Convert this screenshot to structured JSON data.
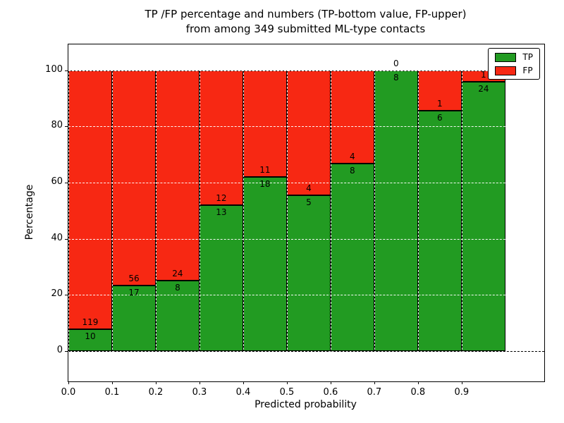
{
  "figure": {
    "title_line1": "TP /FP percentage and numbers (TP-bottom value, FP-upper)",
    "title_line2": "from among 349 submitted ML-type contacts",
    "xlabel": "Predicted probability",
    "ylabel": "Percentage"
  },
  "colors": {
    "tp": "#229b22",
    "fp": "#f72813",
    "axis": "#000000",
    "grid_over_bars": "#ffffff",
    "background": "#ffffff"
  },
  "legend": {
    "position": "upper right",
    "items": [
      {
        "label": "TP",
        "color": "#229b22"
      },
      {
        "label": "FP",
        "color": "#f72813"
      }
    ]
  },
  "chart_data": {
    "type": "bar",
    "stacked": true,
    "normalized_to": 100,
    "title": "TP /FP percentage and numbers (TP-bottom value, FP-upper) from among 349 submitted ML-type contacts",
    "xlabel": "Predicted probability",
    "ylabel": "Percentage",
    "total_contacts": 349,
    "grid": true,
    "bin_width": 0.1,
    "xlim": [
      0,
      1.089
    ],
    "ylim": [
      -10.8,
      109.2
    ],
    "x_tick_labels": [
      "0.0",
      "0.1",
      "0.2",
      "0.3",
      "0.4",
      "0.5",
      "0.6",
      "0.7",
      "0.8",
      "0.9"
    ],
    "y_tick_values": [
      0,
      20,
      40,
      60,
      80,
      100
    ],
    "series": [
      {
        "name": "TP",
        "color": "#229b22"
      },
      {
        "name": "FP",
        "color": "#f72813"
      }
    ],
    "bins": [
      {
        "x_start": 0.0,
        "tp": 10,
        "fp": 119,
        "tp_pct": 7.75,
        "fp_pct": 92.25,
        "fp_label_visible": true
      },
      {
        "x_start": 0.1,
        "tp": 17,
        "fp": 56,
        "tp_pct": 23.29,
        "fp_pct": 76.71,
        "fp_label_visible": true
      },
      {
        "x_start": 0.2,
        "tp": 8,
        "fp": 24,
        "tp_pct": 25.0,
        "fp_pct": 75.0,
        "fp_label_visible": true
      },
      {
        "x_start": 0.3,
        "tp": 13,
        "fp": 12,
        "tp_pct": 52.0,
        "fp_pct": 48.0,
        "fp_label_visible": true
      },
      {
        "x_start": 0.4,
        "tp": 18,
        "fp": 11,
        "tp_pct": 62.07,
        "fp_pct": 37.93,
        "fp_label_visible": true
      },
      {
        "x_start": 0.5,
        "tp": 5,
        "fp": 4,
        "tp_pct": 55.56,
        "fp_pct": 44.44,
        "fp_label_visible": true
      },
      {
        "x_start": 0.6,
        "tp": 8,
        "fp": 4,
        "tp_pct": 66.67,
        "fp_pct": 33.33,
        "fp_label_visible": true
      },
      {
        "x_start": 0.7,
        "tp": 8,
        "fp": 0,
        "tp_pct": 100.0,
        "fp_pct": 0.0,
        "fp_label_visible": true
      },
      {
        "x_start": 0.8,
        "tp": 6,
        "fp": 1,
        "tp_pct": 85.71,
        "fp_pct": 14.29,
        "fp_label_visible": true
      },
      {
        "x_start": 0.9,
        "tp": 24,
        "fp": 1,
        "tp_pct": 96.0,
        "fp_pct": 4.0,
        "fp_label_visible": false
      }
    ]
  }
}
